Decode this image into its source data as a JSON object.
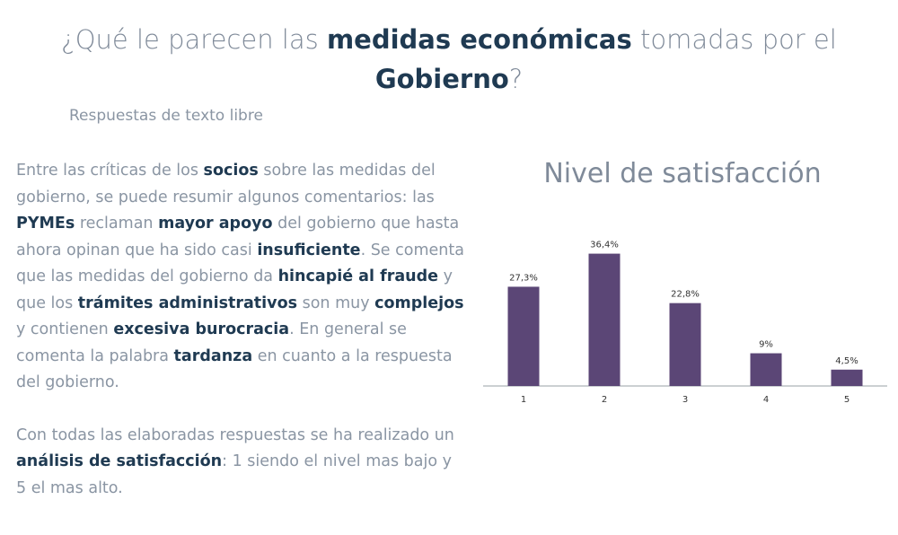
{
  "header": {
    "title_part1": "¿Qué le parecen las ",
    "title_bold1": "medidas económicas",
    "title_part2": " tomadas por el ",
    "title_bold2": "Gobierno",
    "title_part3": "?",
    "subtitle": "Respuestas de texto libre"
  },
  "text": {
    "p1": [
      {
        "t": "Entre las críticas de los ",
        "b": false
      },
      {
        "t": "socios",
        "b": true
      },
      {
        "t": " sobre las medidas del gobierno, se puede resumir algunos comentarios: las ",
        "b": false
      },
      {
        "t": "PYMEs",
        "b": true
      },
      {
        "t": " reclaman ",
        "b": false
      },
      {
        "t": "mayor apoyo",
        "b": true
      },
      {
        "t": " del gobierno que hasta ahora opinan que ha sido casi ",
        "b": false
      },
      {
        "t": "insuficiente",
        "b": true
      },
      {
        "t": ". Se comenta que las medidas del gobierno da ",
        "b": false
      },
      {
        "t": "hincapié al fraude",
        "b": true
      },
      {
        "t": " y que los ",
        "b": false
      },
      {
        "t": "trámites administrativos",
        "b": true
      },
      {
        "t": " son muy ",
        "b": false
      },
      {
        "t": "complejos",
        "b": true
      },
      {
        "t": " y contienen ",
        "b": false
      },
      {
        "t": "excesiva burocracia",
        "b": true
      },
      {
        "t": ". En general se comenta la palabra ",
        "b": false
      },
      {
        "t": "tardanza",
        "b": true
      },
      {
        "t": " en cuanto a la respuesta del gobierno.",
        "b": false
      }
    ],
    "p2": [
      {
        "t": "Con todas las elaboradas respuestas se ha realizado un ",
        "b": false
      },
      {
        "t": "análisis de satisfacción",
        "b": true
      },
      {
        "t": ": 1 siendo el nivel mas bajo y 5 el mas alto.",
        "b": false
      }
    ]
  },
  "chart_data": {
    "type": "bar",
    "title": "Nivel de satisfacción",
    "categories": [
      "1",
      "2",
      "3",
      "4",
      "5"
    ],
    "values": [
      27.3,
      36.4,
      22.8,
      9,
      4.5
    ],
    "data_labels": [
      "27,3%",
      "36,4%",
      "22,8%",
      "9%",
      "4,5%"
    ],
    "ylim": [
      0,
      40
    ],
    "grid": false,
    "bar_color": "#5b4676"
  }
}
